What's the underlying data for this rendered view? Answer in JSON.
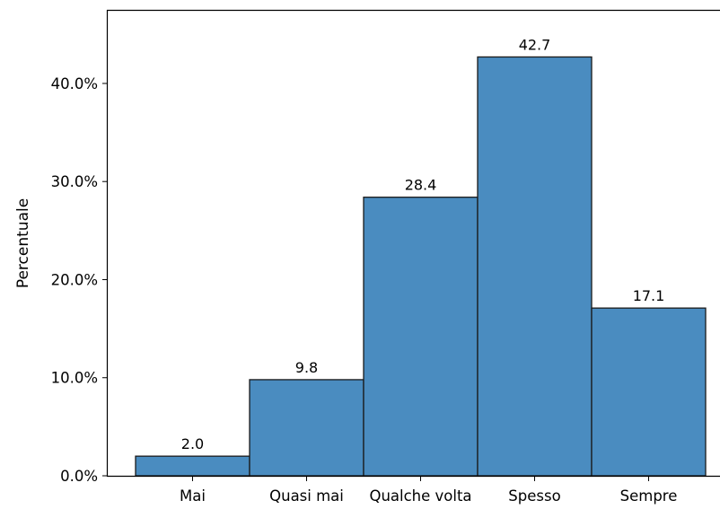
{
  "chart_data": {
    "type": "bar",
    "categories": [
      "Mai",
      "Quasi mai",
      "Qualche volta",
      "Spesso",
      "Sempre"
    ],
    "values": [
      2.0,
      9.8,
      28.4,
      42.7,
      17.1
    ],
    "value_labels": [
      "2.0",
      "9.8",
      "28.4",
      "42.7",
      "17.1"
    ],
    "title": "",
    "xlabel": "",
    "ylabel": "Percentuale",
    "ylim": [
      0,
      47.5
    ],
    "yticks": [
      0,
      10,
      20,
      30,
      40
    ],
    "ytick_labels": [
      "0.0%",
      "10.0%",
      "20.0%",
      "30.0%",
      "40.0%"
    ],
    "grid": false,
    "bar_color": "#4a8cc0",
    "bar_edge_color": "#1a1a1a"
  }
}
